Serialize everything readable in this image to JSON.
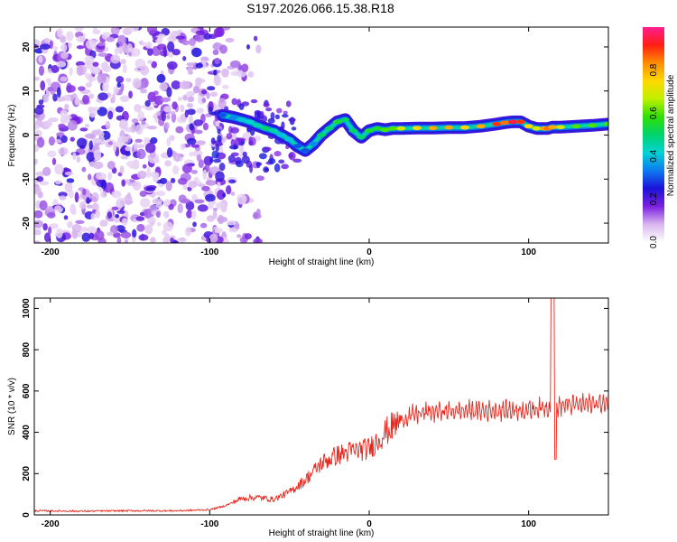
{
  "title": "S197.2026.066.15.38.R18",
  "chart_data": [
    {
      "type": "heatmap",
      "xlabel": "Height of straight line (km)",
      "ylabel": "Frequency (Hz)",
      "xlim": [
        -210,
        150
      ],
      "ylim": [
        -24.5,
        24.5
      ],
      "xticks": [
        -200,
        -100,
        0,
        100
      ],
      "yticks": [
        -20,
        -10,
        0,
        10,
        20
      ],
      "colorbar": {
        "label": "Normalized spectral amplitude",
        "range": [
          0.0,
          1.0
        ],
        "ticks": [
          0.0,
          0.2,
          0.4,
          0.6,
          0.8
        ],
        "tick_labels": [
          "0.0",
          "0.2",
          "0.4",
          "0.6",
          "0.8"
        ],
        "colors": [
          "#ffffff",
          "#d8b6ee",
          "#7a1fe0",
          "#1a12d9",
          "#0d7cf0",
          "#00d3d3",
          "#00d36c",
          "#2fe000",
          "#bff000",
          "#ffd800",
          "#ff8c00",
          "#ff1e14",
          "#ff1e90"
        ]
      },
      "noise_region_x": [
        -210,
        -95
      ],
      "ridge": {
        "x": [
          -92,
          -85,
          -80,
          -75,
          -70,
          -65,
          -60,
          -55,
          -50,
          -45,
          -40,
          -35,
          -30,
          -25,
          -20,
          -15,
          -10,
          -5,
          0,
          5,
          10,
          15,
          20,
          30,
          40,
          50,
          60,
          70,
          80,
          85,
          90,
          95,
          100,
          105,
          110,
          112,
          115,
          120,
          130,
          140,
          150
        ],
        "frequency_hz": [
          4.5,
          4.0,
          3.5,
          3.0,
          2.2,
          1.5,
          1.0,
          0.0,
          -1.0,
          -2.5,
          -3.5,
          -2.0,
          0.0,
          1.5,
          3.0,
          3.5,
          1.0,
          -0.5,
          1.0,
          1.5,
          1.2,
          1.5,
          1.5,
          1.6,
          1.6,
          1.7,
          1.7,
          2.0,
          2.5,
          2.8,
          3.0,
          3.0,
          2.0,
          1.5,
          1.5,
          1.5,
          1.8,
          1.8,
          2.0,
          2.2,
          2.5
        ],
        "amplitude": [
          0.3,
          0.35,
          0.4,
          0.42,
          0.45,
          0.5,
          0.45,
          0.4,
          0.4,
          0.3,
          0.3,
          0.35,
          0.5,
          0.5,
          0.55,
          0.5,
          0.5,
          0.5,
          0.55,
          0.55,
          0.6,
          0.6,
          0.7,
          0.75,
          0.8,
          0.8,
          0.75,
          0.8,
          0.9,
          0.85,
          0.95,
          0.9,
          0.75,
          0.7,
          0.8,
          0.85,
          0.8,
          0.7,
          0.6,
          0.6,
          0.6
        ]
      }
    },
    {
      "type": "line",
      "xlabel": "Height of straight line (km)",
      "ylabel": "SNR (10 * v/v)",
      "xlim": [
        -210,
        150
      ],
      "ylim": [
        0,
        1050
      ],
      "xticks": [
        -200,
        -100,
        0,
        100
      ],
      "yticks": [
        0,
        200,
        400,
        600,
        800,
        1000
      ],
      "color": "#e8281e",
      "series": {
        "x": [
          -210,
          -180,
          -150,
          -120,
          -100,
          -90,
          -80,
          -70,
          -60,
          -50,
          -40,
          -30,
          -20,
          -10,
          0,
          10,
          20,
          30,
          40,
          60,
          80,
          100,
          110,
          115,
          120,
          140,
          150
        ],
        "y": [
          20,
          18,
          20,
          20,
          25,
          45,
          80,
          85,
          75,
          110,
          170,
          250,
          290,
          310,
          320,
          400,
          460,
          490,
          500,
          505,
          505,
          510,
          520,
          520,
          530,
          540,
          540
        ]
      },
      "spike": {
        "x": 115,
        "max": 1050,
        "min": 270
      }
    }
  ]
}
